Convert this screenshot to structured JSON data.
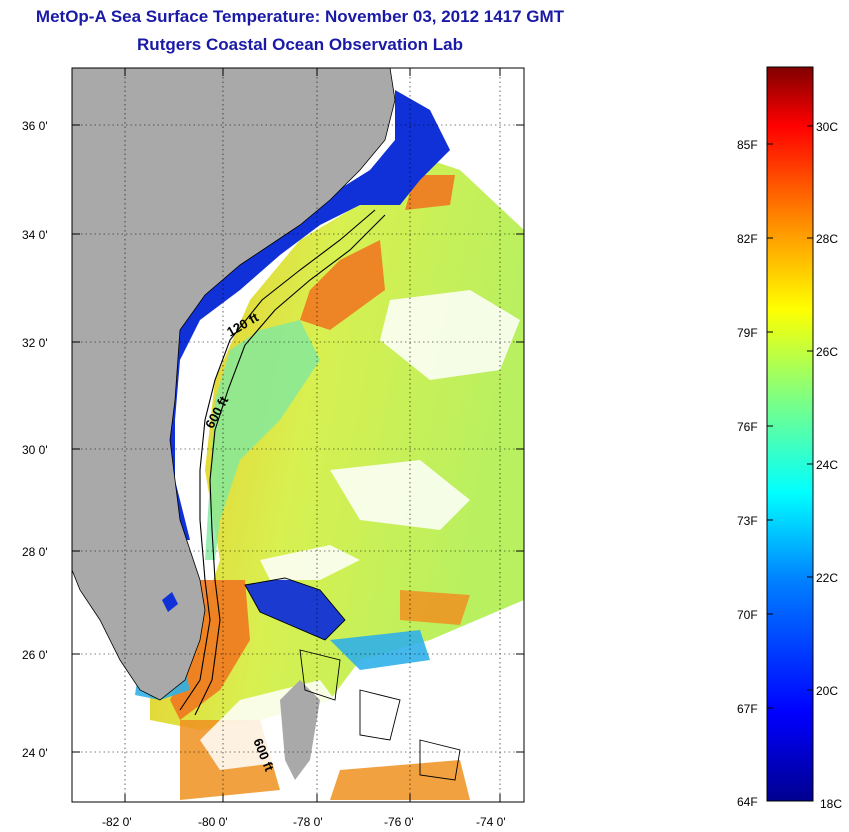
{
  "header": {
    "title": "MetOp-A Sea Surface Temperature:  November 03, 2012 1417 GMT",
    "subtitle": "Rutgers Coastal Ocean Observation Lab"
  },
  "map": {
    "lat_labels": [
      "36 0'",
      "34 0'",
      "32 0'",
      "30 0'",
      "28 0'",
      "26 0'",
      "24 0'"
    ],
    "lon_labels": [
      "-82 0'",
      "-80 0'",
      "-78 0'",
      "-76 0'",
      "-74 0'"
    ],
    "contour_labels": [
      "120 ft",
      "600 ft",
      "600 ft"
    ],
    "colors": {
      "land": "#a9a9a9",
      "cloud": "#ffffff",
      "cold": "#0a1fd0",
      "warm": "#f07010"
    }
  },
  "colorbar": {
    "fahrenheit_labels": [
      "85F",
      "82F",
      "79F",
      "76F",
      "73F",
      "70F",
      "67F",
      "64F"
    ],
    "celsius_labels": [
      "30C",
      "28C",
      "26C",
      "24C",
      "22C",
      "20C",
      "18C"
    ],
    "colors": [
      "#00008f",
      "#0000ff",
      "#0080ff",
      "#00ffff",
      "#80ff80",
      "#ffff00",
      "#ff8000",
      "#ff0000",
      "#800000"
    ]
  }
}
